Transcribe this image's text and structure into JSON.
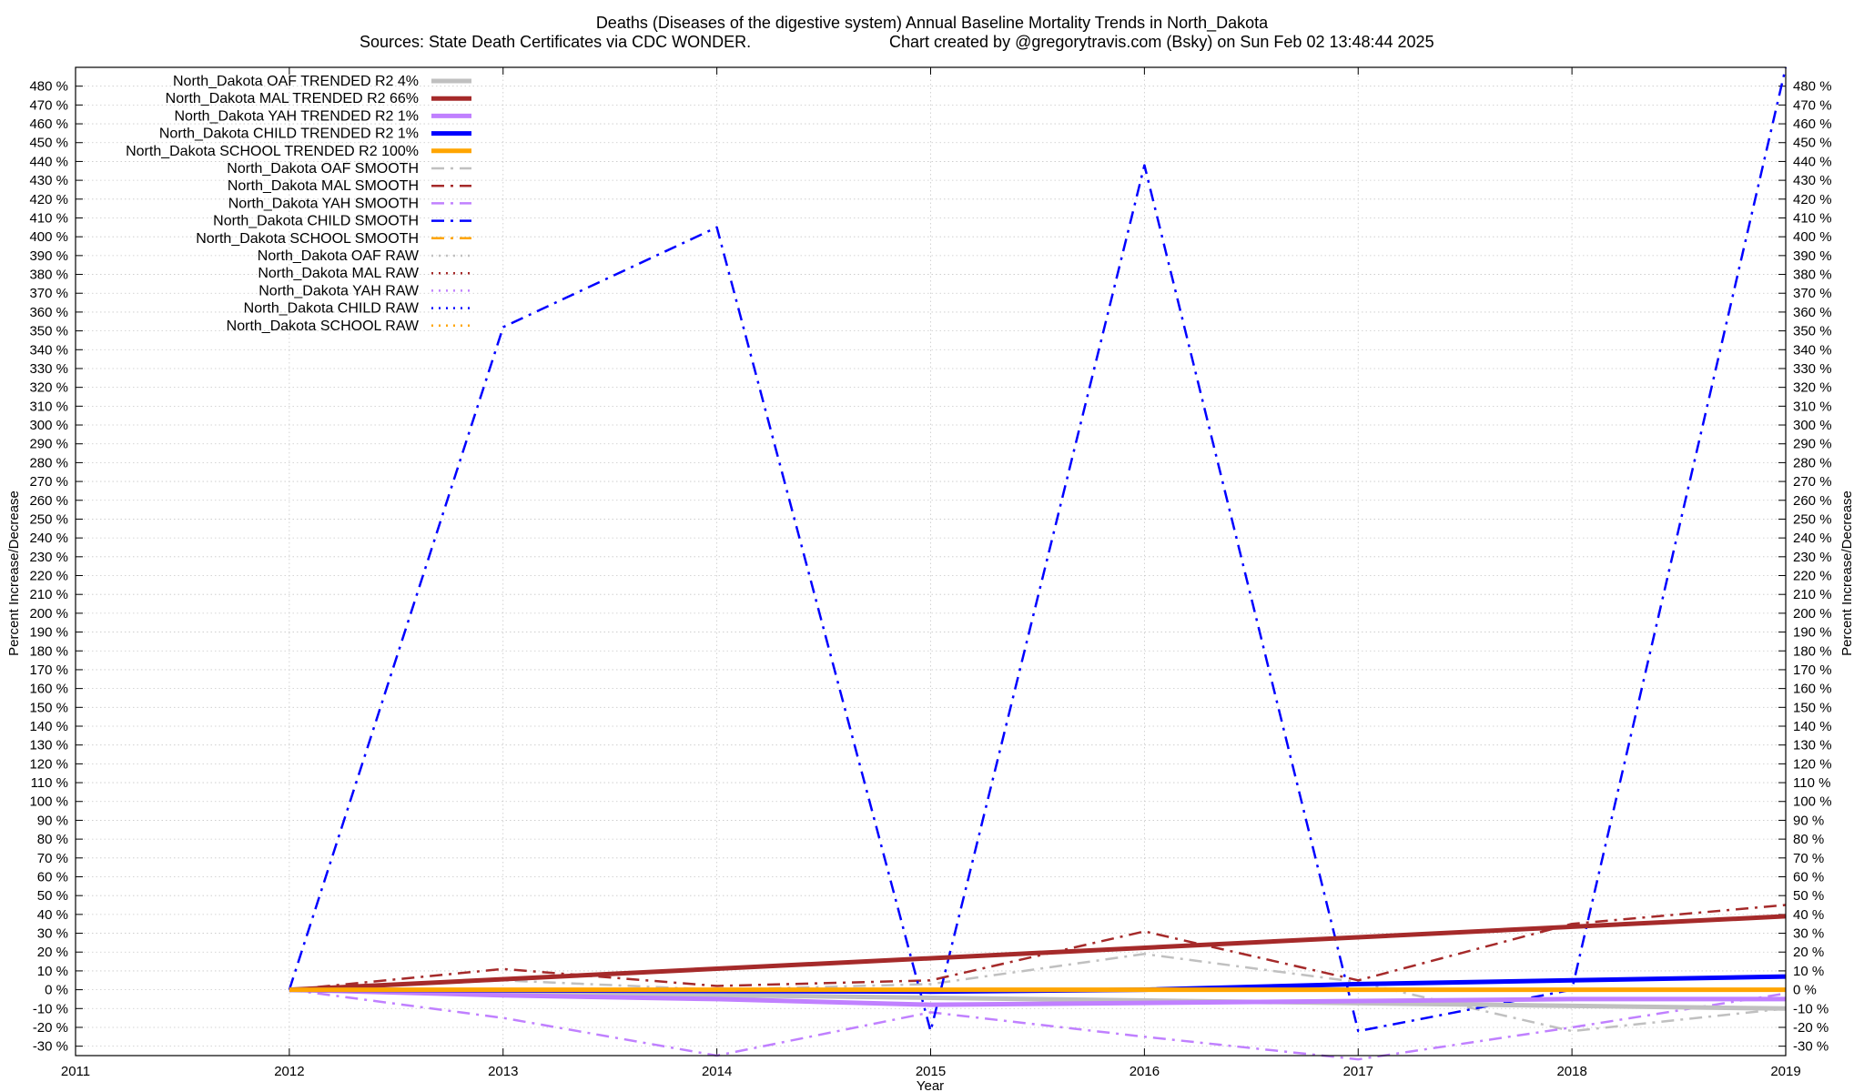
{
  "chart_data": {
    "type": "line",
    "title": "Deaths (Diseases of the digestive system)  Annual Baseline Mortality Trends in North_Dakota",
    "subtitle_left": "Sources: State Death Certificates via CDC WONDER.",
    "subtitle_right": "Chart created by @gregorytravis.com (Bsky) on Sun Feb 02 13:48:44 2025",
    "xlabel": "Year",
    "ylabel": "Percent Increase/Decrease",
    "y2label": "Percent Increase/Decrease",
    "xlim": [
      2011,
      2019
    ],
    "ylim": [
      -35,
      490
    ],
    "x_ticks": [
      2011,
      2012,
      2013,
      2014,
      2015,
      2016,
      2017,
      2018,
      2019
    ],
    "y_tick_step": 10,
    "y_tick_min": -30,
    "y_tick_max": 480,
    "y_tick_suffix": " %",
    "grid": true,
    "legend_position": "top-left",
    "series": [
      {
        "name": "North_Dakota OAF TRENDED R2  4%",
        "style": "trend",
        "color": "#c0c0c0",
        "x": [
          2012,
          2019
        ],
        "y": [
          0,
          -10
        ]
      },
      {
        "name": "North_Dakota MAL TRENDED R2  66%",
        "style": "trend",
        "color": "#a52a2a",
        "x": [
          2012,
          2019
        ],
        "y": [
          0,
          39
        ]
      },
      {
        "name": "North_Dakota YAH TRENDED R2   1%",
        "style": "trend",
        "color": "#c080ff",
        "x": [
          2012,
          2013,
          2014,
          2015,
          2016,
          2017,
          2018,
          2019
        ],
        "y": [
          0,
          -3,
          -5,
          -8,
          -7,
          -6,
          -5,
          -5
        ]
      },
      {
        "name": "North_Dakota CHILD TRENDED R2   1%",
        "style": "trend",
        "color": "#0000ff",
        "x": [
          2012,
          2015,
          2016,
          2017,
          2018,
          2019
        ],
        "y": [
          0,
          -1,
          0,
          3,
          5,
          7
        ]
      },
      {
        "name": "North_Dakota SCHOOL TRENDED R2 100%",
        "style": "trend",
        "color": "#ffa500",
        "x": [
          2012,
          2019
        ],
        "y": [
          0,
          0
        ]
      },
      {
        "name": "North_Dakota OAF SMOOTH",
        "style": "smooth",
        "color": "#c0c0c0",
        "x": [
          2012,
          2013,
          2014,
          2015,
          2016,
          2017,
          2018,
          2019
        ],
        "y": [
          0,
          5,
          0,
          3,
          19,
          4,
          -22,
          -10
        ]
      },
      {
        "name": "North_Dakota MAL SMOOTH",
        "style": "smooth",
        "color": "#a52a2a",
        "x": [
          2012,
          2013,
          2014,
          2015,
          2016,
          2017,
          2018,
          2019
        ],
        "y": [
          0,
          11,
          2,
          5,
          31,
          5,
          35,
          45
        ]
      },
      {
        "name": "North_Dakota YAH SMOOTH",
        "style": "smooth",
        "color": "#c080ff",
        "x": [
          2012,
          2013,
          2014,
          2015,
          2016,
          2017,
          2018,
          2019
        ],
        "y": [
          0,
          -15,
          -35,
          -12,
          -25,
          -37,
          -20,
          -2
        ]
      },
      {
        "name": "North_Dakota CHILD SMOOTH",
        "style": "smooth",
        "color": "#0000ff",
        "x": [
          2012,
          2013,
          2014,
          2015,
          2016,
          2017,
          2018,
          2019
        ],
        "y": [
          0,
          352,
          405,
          -22,
          438,
          -22,
          0,
          490
        ]
      },
      {
        "name": "North_Dakota SCHOOL SMOOTH",
        "style": "smooth",
        "color": "#ffa500",
        "x": [
          2012,
          2019
        ],
        "y": [
          0,
          0
        ]
      },
      {
        "name": "North_Dakota OAF RAW",
        "style": "raw",
        "color": "#c0c0c0",
        "x": [],
        "y": []
      },
      {
        "name": "North_Dakota MAL RAW",
        "style": "raw",
        "color": "#a52a2a",
        "x": [],
        "y": []
      },
      {
        "name": "North_Dakota YAH RAW",
        "style": "raw",
        "color": "#c080ff",
        "x": [],
        "y": []
      },
      {
        "name": "North_Dakota CHILD RAW",
        "style": "raw",
        "color": "#0000ff",
        "x": [],
        "y": []
      },
      {
        "name": "North_Dakota SCHOOL RAW",
        "style": "raw",
        "color": "#ffa500",
        "x": [],
        "y": []
      }
    ]
  }
}
